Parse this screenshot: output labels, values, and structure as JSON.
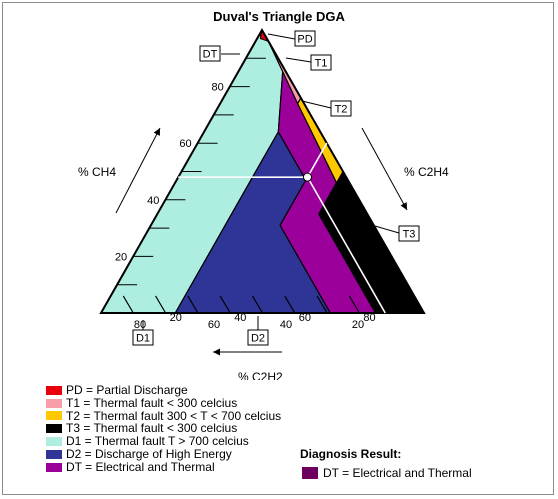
{
  "title": "Duval's Triangle DGA",
  "axes": {
    "ch4": {
      "label": "% CH4",
      "ticks": [
        "20",
        "40",
        "60",
        "80"
      ]
    },
    "c2h4": {
      "label": "% C2H4",
      "ticks": [
        "20",
        "40",
        "60",
        "80"
      ]
    },
    "c2h2": {
      "label": "% C2H2",
      "ticks": [
        "80",
        "60",
        "40",
        "20"
      ]
    }
  },
  "zones": [
    {
      "code": "PD",
      "color": "#e8000b"
    },
    {
      "code": "T1",
      "color": "#f79ea8"
    },
    {
      "code": "T2",
      "color": "#ffc800"
    },
    {
      "code": "T3",
      "color": "#000000"
    },
    {
      "code": "D1",
      "color": "#aeeee0"
    },
    {
      "code": "D2",
      "color": "#2e3596"
    },
    {
      "code": "DT",
      "color": "#9b009b"
    }
  ],
  "legend": [
    {
      "text": "PD = Partial Discharge",
      "color": "#e8000b"
    },
    {
      "text": "T1 = Thermal fault < 300 celcius",
      "color": "#f79ea8"
    },
    {
      "text": "T2 = Thermal fault 300 < T < 700 celcius",
      "color": "#ffc800"
    },
    {
      "text": "T3 = Thermal fault < 300 celcius",
      "color": "#000000"
    },
    {
      "text": "D1 = Thermal fault T > 700 celcius",
      "color": "#aeeee0"
    },
    {
      "text": "D2 = Discharge of High Energy",
      "color": "#2e3596"
    },
    {
      "text": "DT = Electrical and Thermal",
      "color": "#9b009b"
    }
  ],
  "result": {
    "title": "Diagnosis Result:",
    "text": "DT = Electrical and Thermal",
    "color": "#6b005e"
  },
  "sample_point": {
    "ch4": 48,
    "c2h4": 40,
    "c2h2": 12
  }
}
